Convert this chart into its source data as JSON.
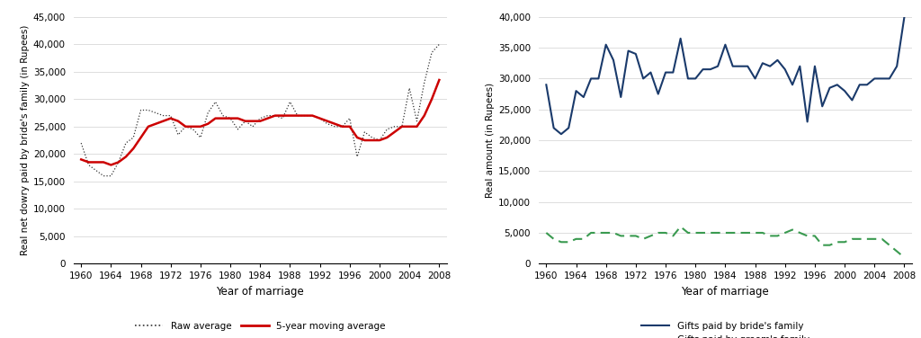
{
  "left_years": [
    1960,
    1961,
    1962,
    1963,
    1964,
    1965,
    1966,
    1967,
    1968,
    1969,
    1970,
    1971,
    1972,
    1973,
    1974,
    1975,
    1976,
    1977,
    1978,
    1979,
    1980,
    1981,
    1982,
    1983,
    1984,
    1985,
    1986,
    1987,
    1988,
    1989,
    1990,
    1991,
    1992,
    1993,
    1994,
    1995,
    1996,
    1997,
    1998,
    1999,
    2000,
    2001,
    2002,
    2003,
    2004,
    2005,
    2006,
    2007,
    2008
  ],
  "left_raw": [
    22000,
    18000,
    17000,
    16000,
    16000,
    18500,
    22000,
    23000,
    28000,
    28000,
    27500,
    27000,
    27000,
    23500,
    25000,
    24500,
    23000,
    27500,
    29500,
    27000,
    26500,
    24500,
    26000,
    25000,
    26500,
    27000,
    27000,
    26500,
    29500,
    27000,
    27000,
    27000,
    26500,
    25500,
    25000,
    25000,
    26500,
    19500,
    24000,
    23000,
    22500,
    24500,
    25000,
    25000,
    32000,
    26000,
    33000,
    38500,
    40000
  ],
  "left_ma": [
    19000,
    18500,
    18500,
    18500,
    18000,
    18500,
    19500,
    21000,
    23000,
    25000,
    25500,
    26000,
    26500,
    26000,
    25000,
    25000,
    25000,
    25500,
    26500,
    26500,
    26500,
    26500,
    26000,
    26000,
    26000,
    26500,
    27000,
    27000,
    27000,
    27000,
    27000,
    27000,
    26500,
    26000,
    25500,
    25000,
    25000,
    23000,
    22500,
    22500,
    22500,
    23000,
    24000,
    25000,
    25000,
    25000,
    27000,
    30000,
    33500
  ],
  "right_years": [
    1960,
    1961,
    1962,
    1963,
    1964,
    1965,
    1966,
    1967,
    1968,
    1969,
    1970,
    1971,
    1972,
    1973,
    1974,
    1975,
    1976,
    1977,
    1978,
    1979,
    1980,
    1981,
    1982,
    1983,
    1984,
    1985,
    1986,
    1987,
    1988,
    1989,
    1990,
    1991,
    1992,
    1993,
    1994,
    1995,
    1996,
    1997,
    1998,
    1999,
    2000,
    2001,
    2002,
    2003,
    2004,
    2005,
    2006,
    2007,
    2008
  ],
  "right_bride": [
    29000,
    22000,
    21000,
    22000,
    28000,
    27000,
    30000,
    30000,
    35500,
    33000,
    27000,
    34500,
    34000,
    30000,
    31000,
    27500,
    31000,
    31000,
    36500,
    30000,
    30000,
    31500,
    31500,
    32000,
    35500,
    32000,
    32000,
    32000,
    30000,
    32500,
    32000,
    33000,
    31500,
    29000,
    32000,
    23000,
    32000,
    25500,
    28500,
    29000,
    28000,
    26500,
    29000,
    29000,
    30000,
    30000,
    30000,
    32000,
    40000
  ],
  "right_groom": [
    5000,
    4000,
    3500,
    3500,
    4000,
    4000,
    5000,
    5000,
    5000,
    5000,
    4500,
    4500,
    4500,
    4000,
    4500,
    5000,
    5000,
    4500,
    6000,
    5000,
    5000,
    5000,
    5000,
    5000,
    5000,
    5000,
    5000,
    5000,
    5000,
    5000,
    4500,
    4500,
    5000,
    5500,
    5000,
    4500,
    4500,
    3000,
    3000,
    3500,
    3500,
    4000,
    4000,
    4000,
    4000,
    4000,
    3000,
    2000,
    1000
  ],
  "left_ylabel": "Real net dowry paid by bride's family (in Rupees)",
  "right_ylabel": "Real amount (in Rupees)",
  "xlabel": "Year of marriage",
  "left_ylim": [
    0,
    45000
  ],
  "right_ylim": [
    0,
    40000
  ],
  "left_yticks": [
    0,
    5000,
    10000,
    15000,
    20000,
    25000,
    30000,
    35000,
    40000,
    45000
  ],
  "right_yticks": [
    0,
    5000,
    10000,
    15000,
    20000,
    25000,
    30000,
    35000,
    40000
  ],
  "xticks": [
    1960,
    1964,
    1968,
    1972,
    1976,
    1980,
    1984,
    1988,
    1992,
    1996,
    2000,
    2004,
    2008
  ],
  "raw_color": "#333333",
  "ma_color": "#cc0000",
  "bride_color": "#1a3a6b",
  "groom_color": "#3a9a50",
  "grid_color": "#d8d8d8",
  "bg_color": "#ffffff",
  "legend1_labels": [
    "Raw average",
    "5-year moving average"
  ],
  "legend2_labels": [
    "Gifts paid by bride's family",
    "Gifts paid by groom's family"
  ]
}
